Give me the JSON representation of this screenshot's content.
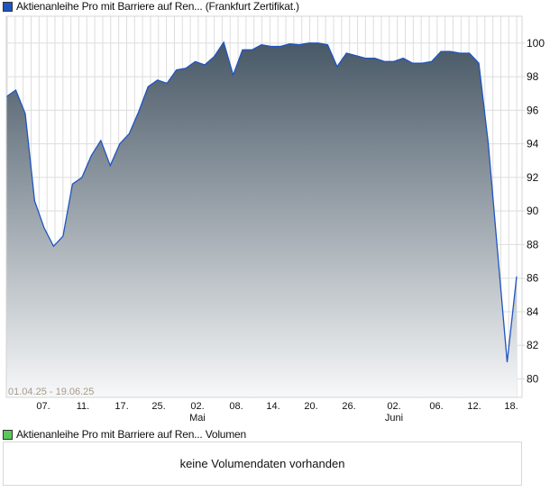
{
  "chart_data": {
    "type": "area",
    "title": "Aktienanleihe Pro mit Barriere auf Ren... (Frankfurt Zertifikat.)",
    "date_range": "01.04.25 - 19.06.25",
    "ylim": [
      78.9,
      101.6
    ],
    "yticks": [
      80,
      82,
      84,
      86,
      88,
      90,
      92,
      94,
      96,
      98,
      100
    ],
    "xtick_labels": [
      {
        "day": "07.",
        "month": ""
      },
      {
        "day": "11.",
        "month": ""
      },
      {
        "day": "17.",
        "month": ""
      },
      {
        "day": "25.",
        "month": ""
      },
      {
        "day": "02.",
        "month": "Mai"
      },
      {
        "day": "08.",
        "month": ""
      },
      {
        "day": "14.",
        "month": ""
      },
      {
        "day": "20.",
        "month": ""
      },
      {
        "day": "26.",
        "month": ""
      },
      {
        "day": "02.",
        "month": "Juni"
      },
      {
        "day": "06.",
        "month": ""
      },
      {
        "day": "12.",
        "month": ""
      },
      {
        "day": "18.",
        "month": ""
      }
    ],
    "grid": true,
    "series": [
      {
        "name": "Aktienanleihe Pro mit Barriere auf Ren...",
        "color": "#1f55c0",
        "values": [
          96.8,
          97.2,
          95.8,
          90.6,
          89.0,
          87.9,
          88.5,
          91.6,
          92.0,
          93.3,
          94.2,
          92.7,
          94.0,
          94.6,
          95.9,
          97.4,
          97.8,
          97.6,
          98.4,
          98.5,
          98.9,
          98.7,
          99.2,
          100.05,
          98.1,
          99.6,
          99.6,
          99.9,
          99.8,
          99.8,
          99.95,
          99.9,
          100.0,
          100.0,
          99.9,
          98.6,
          99.4,
          99.25,
          99.1,
          99.1,
          98.9,
          98.9,
          99.1,
          98.8,
          98.8,
          98.9,
          99.5,
          99.5,
          99.4,
          99.4,
          98.8,
          94.0,
          87.5,
          81.0,
          86.1
        ]
      }
    ]
  },
  "volume": {
    "legend": "Aktienanleihe Pro mit Barriere auf Ren... Volumen",
    "legend_color": "#5cc85c",
    "message": "keine Volumendaten vorhanden"
  }
}
